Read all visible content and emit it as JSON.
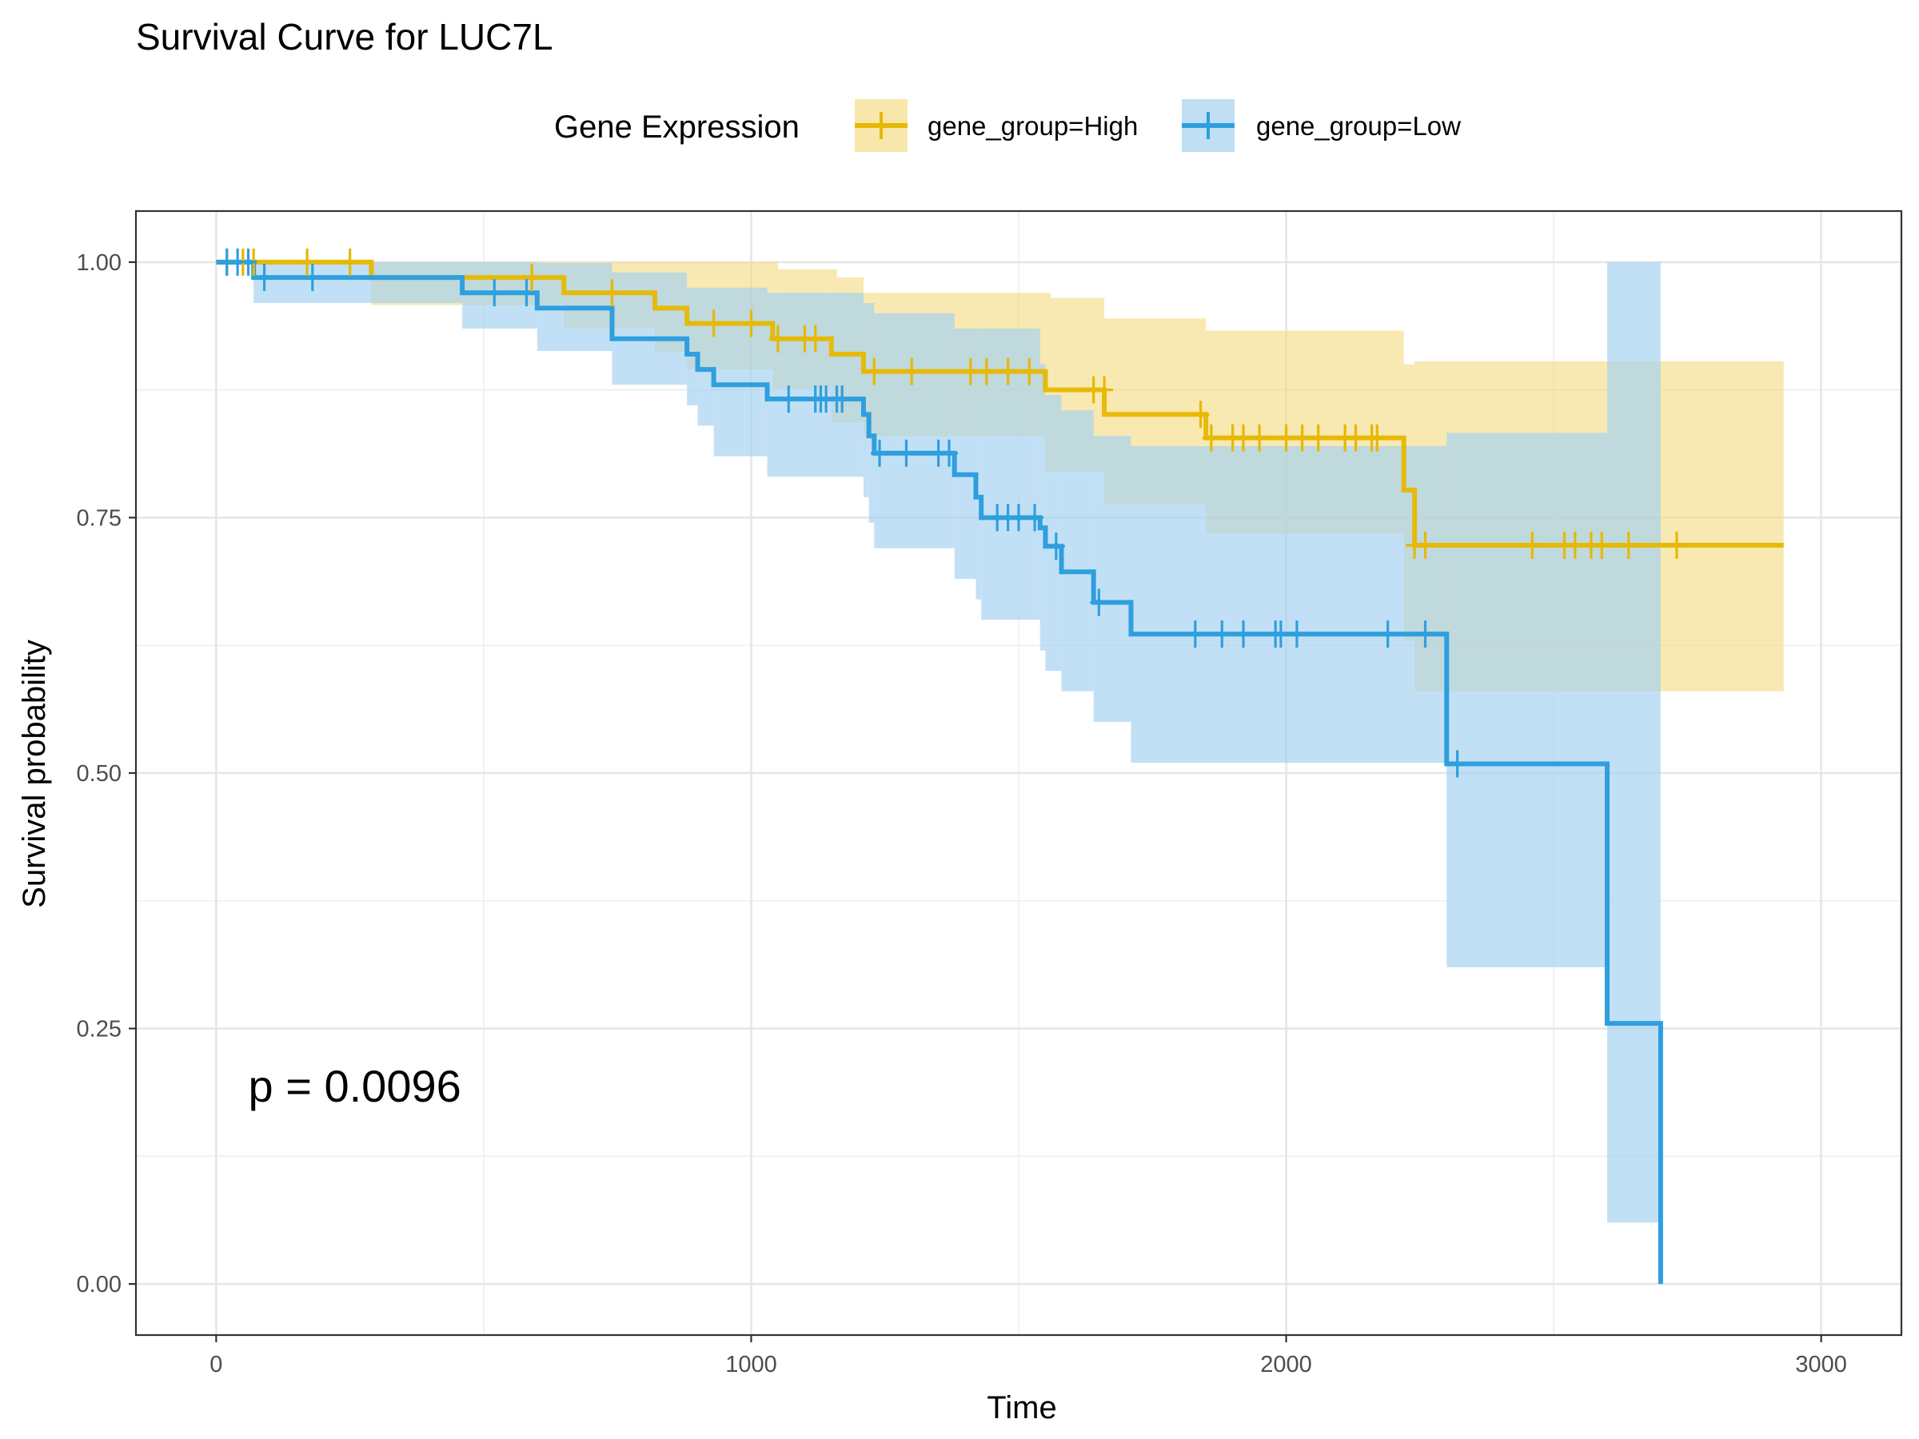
{
  "chart_data": {
    "type": "line",
    "subtype": "kaplan-meier survival curve",
    "title": "Survival Curve for LUC7L",
    "xlabel": "Time",
    "ylabel": "Survival probability",
    "xlim": [
      -150,
      3150
    ],
    "ylim": [
      -0.05,
      1.05
    ],
    "xticks": [
      0,
      1000,
      2000,
      3000
    ],
    "xtick_labels": [
      "0",
      "1000",
      "2000",
      "3000"
    ],
    "yticks": [
      0,
      0.25,
      0.5,
      0.75,
      1
    ],
    "ytick_labels": [
      "0.00",
      "0.25",
      "0.50",
      "0.75",
      "1.00"
    ],
    "grid": true,
    "legend": {
      "title": "Gene Expression",
      "position": "top"
    },
    "annotation": "p = 0.0096",
    "series": [
      {
        "name": "gene_group=High",
        "color": "#E7B800",
        "band_color": "#F3DA7E",
        "steps": [
          [
            0,
            1.0
          ],
          [
            290,
            0.985
          ],
          [
            650,
            0.97
          ],
          [
            820,
            0.955
          ],
          [
            880,
            0.94
          ],
          [
            1040,
            0.925
          ],
          [
            1150,
            0.91
          ],
          [
            1210,
            0.893
          ],
          [
            1550,
            0.875
          ],
          [
            1660,
            0.851
          ],
          [
            1850,
            0.828
          ],
          [
            2220,
            0.777
          ],
          [
            2240,
            0.723
          ],
          [
            2930,
            0.723
          ]
        ],
        "lower": [
          [
            0,
            1.0
          ],
          [
            290,
            0.958
          ],
          [
            650,
            0.935
          ],
          [
            820,
            0.912
          ],
          [
            880,
            0.895
          ],
          [
            1040,
            0.876
          ],
          [
            1150,
            0.843
          ],
          [
            1210,
            0.83
          ],
          [
            1550,
            0.795
          ],
          [
            1660,
            0.763
          ],
          [
            1850,
            0.734
          ],
          [
            2220,
            0.63
          ],
          [
            2240,
            0.58
          ],
          [
            2930,
            0.58
          ]
        ],
        "upper": [
          [
            0,
            1.0
          ],
          [
            1050,
            0.993
          ],
          [
            1160,
            0.985
          ],
          [
            1210,
            0.97
          ],
          [
            1560,
            0.965
          ],
          [
            1660,
            0.945
          ],
          [
            1850,
            0.933
          ],
          [
            2220,
            0.9
          ],
          [
            2240,
            0.903
          ],
          [
            2930,
            0.903
          ]
        ],
        "censored": [
          [
            20,
            1.0
          ],
          [
            50,
            1.0
          ],
          [
            70,
            1.0
          ],
          [
            170,
            1.0
          ],
          [
            250,
            1.0
          ],
          [
            590,
            0.985
          ],
          [
            740,
            0.97
          ],
          [
            930,
            0.94
          ],
          [
            1000,
            0.94
          ],
          [
            1050,
            0.925
          ],
          [
            1100,
            0.925
          ],
          [
            1120,
            0.925
          ],
          [
            1230,
            0.893
          ],
          [
            1300,
            0.893
          ],
          [
            1410,
            0.893
          ],
          [
            1440,
            0.893
          ],
          [
            1480,
            0.893
          ],
          [
            1520,
            0.893
          ],
          [
            1640,
            0.875
          ],
          [
            1660,
            0.875
          ],
          [
            1840,
            0.851
          ],
          [
            1860,
            0.828
          ],
          [
            1900,
            0.828
          ],
          [
            1920,
            0.828
          ],
          [
            1950,
            0.828
          ],
          [
            2000,
            0.828
          ],
          [
            2030,
            0.828
          ],
          [
            2060,
            0.828
          ],
          [
            2110,
            0.828
          ],
          [
            2130,
            0.828
          ],
          [
            2160,
            0.828
          ],
          [
            2170,
            0.828
          ],
          [
            2240,
            0.723
          ],
          [
            2260,
            0.723
          ],
          [
            2460,
            0.723
          ],
          [
            2520,
            0.723
          ],
          [
            2540,
            0.723
          ],
          [
            2570,
            0.723
          ],
          [
            2590,
            0.723
          ],
          [
            2640,
            0.723
          ],
          [
            2730,
            0.723
          ]
        ]
      },
      {
        "name": "gene_group=Low",
        "color": "#2E9FDF",
        "band_color": "#A5D2F0",
        "steps": [
          [
            0,
            1.0
          ],
          [
            70,
            0.985
          ],
          [
            460,
            0.97
          ],
          [
            600,
            0.955
          ],
          [
            740,
            0.925
          ],
          [
            880,
            0.91
          ],
          [
            900,
            0.895
          ],
          [
            930,
            0.88
          ],
          [
            1030,
            0.866
          ],
          [
            1210,
            0.851
          ],
          [
            1220,
            0.83
          ],
          [
            1230,
            0.813
          ],
          [
            1380,
            0.792
          ],
          [
            1420,
            0.77
          ],
          [
            1430,
            0.75
          ],
          [
            1540,
            0.74
          ],
          [
            1550,
            0.722
          ],
          [
            1580,
            0.697
          ],
          [
            1640,
            0.667
          ],
          [
            1710,
            0.636
          ],
          [
            2300,
            0.509
          ],
          [
            2600,
            0.255
          ],
          [
            2700,
            0.0
          ]
        ],
        "lower": [
          [
            0,
            1.0
          ],
          [
            70,
            0.96
          ],
          [
            460,
            0.935
          ],
          [
            600,
            0.913
          ],
          [
            740,
            0.88
          ],
          [
            880,
            0.86
          ],
          [
            900,
            0.84
          ],
          [
            930,
            0.81
          ],
          [
            1030,
            0.79
          ],
          [
            1210,
            0.77
          ],
          [
            1220,
            0.745
          ],
          [
            1230,
            0.72
          ],
          [
            1380,
            0.69
          ],
          [
            1420,
            0.67
          ],
          [
            1430,
            0.65
          ],
          [
            1540,
            0.62
          ],
          [
            1550,
            0.6
          ],
          [
            1580,
            0.58
          ],
          [
            1640,
            0.55
          ],
          [
            1710,
            0.51
          ],
          [
            2300,
            0.31
          ],
          [
            2600,
            0.06
          ],
          [
            2700,
            0.06
          ]
        ],
        "upper": [
          [
            0,
            1.0
          ],
          [
            600,
            0.999
          ],
          [
            740,
            0.99
          ],
          [
            880,
            0.975
          ],
          [
            1030,
            0.97
          ],
          [
            1210,
            0.96
          ],
          [
            1230,
            0.95
          ],
          [
            1380,
            0.935
          ],
          [
            1540,
            0.9
          ],
          [
            1550,
            0.87
          ],
          [
            1580,
            0.855
          ],
          [
            1640,
            0.83
          ],
          [
            1710,
            0.82
          ],
          [
            2300,
            0.833
          ],
          [
            2600,
            1.0
          ],
          [
            2700,
            1.0
          ]
        ],
        "censored": [
          [
            20,
            1.0
          ],
          [
            40,
            1.0
          ],
          [
            60,
            1.0
          ],
          [
            90,
            0.985
          ],
          [
            180,
            0.985
          ],
          [
            520,
            0.97
          ],
          [
            580,
            0.97
          ],
          [
            1070,
            0.866
          ],
          [
            1120,
            0.866
          ],
          [
            1130,
            0.866
          ],
          [
            1140,
            0.866
          ],
          [
            1160,
            0.866
          ],
          [
            1170,
            0.866
          ],
          [
            1240,
            0.813
          ],
          [
            1290,
            0.813
          ],
          [
            1350,
            0.813
          ],
          [
            1370,
            0.813
          ],
          [
            1460,
            0.75
          ],
          [
            1480,
            0.75
          ],
          [
            1500,
            0.75
          ],
          [
            1530,
            0.75
          ],
          [
            1570,
            0.722
          ],
          [
            1650,
            0.667
          ],
          [
            1830,
            0.636
          ],
          [
            1880,
            0.636
          ],
          [
            1920,
            0.636
          ],
          [
            1980,
            0.636
          ],
          [
            1990,
            0.636
          ],
          [
            2020,
            0.636
          ],
          [
            2190,
            0.636
          ],
          [
            2260,
            0.636
          ],
          [
            2320,
            0.509
          ]
        ]
      }
    ]
  }
}
